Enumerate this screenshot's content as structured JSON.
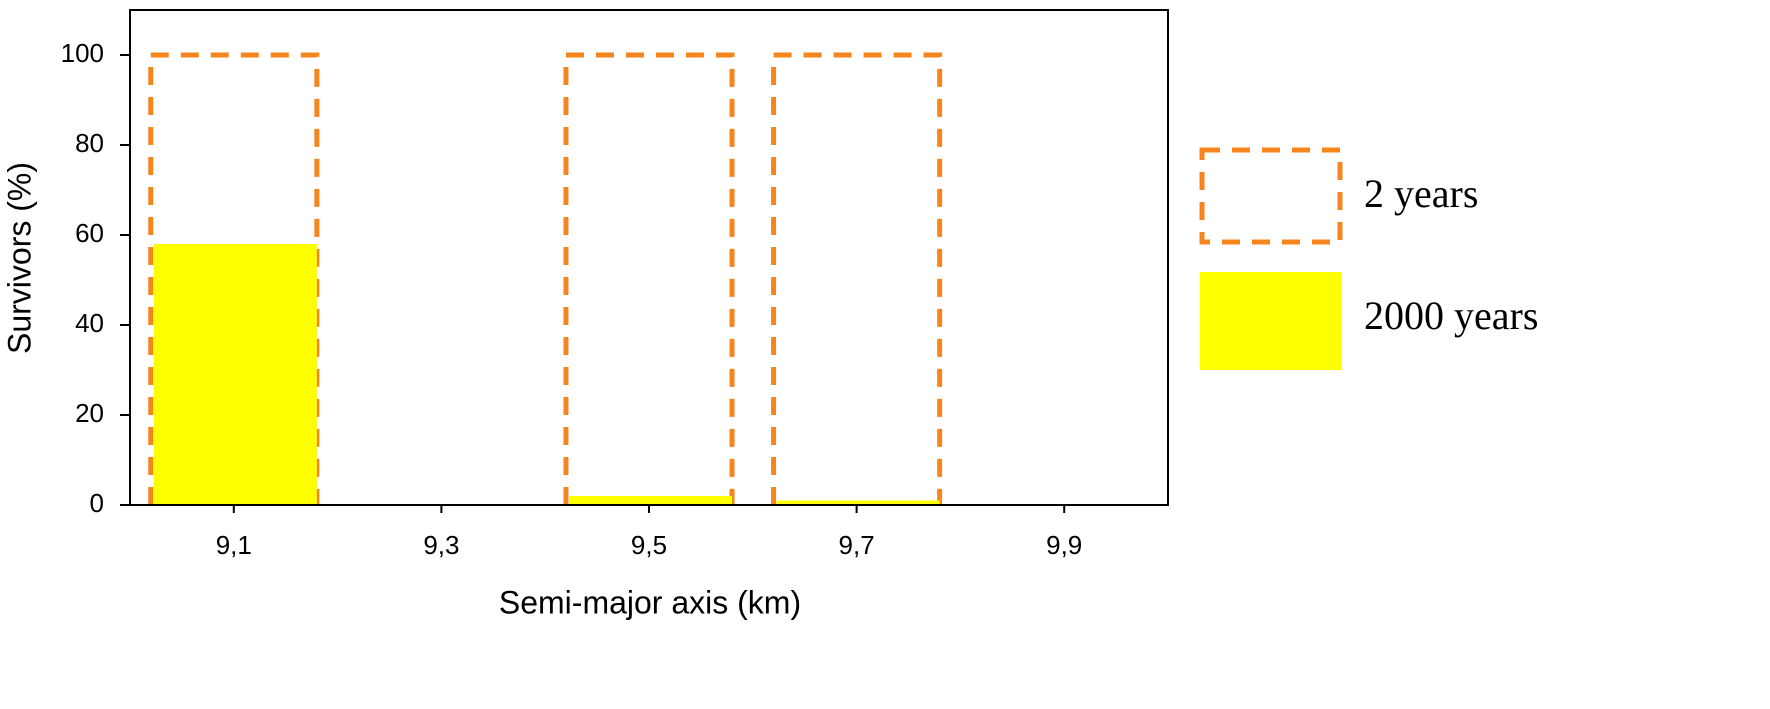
{
  "chart_data": {
    "type": "bar",
    "x_label": "Semi-major axis (km)",
    "y_label": "Survivors (%)",
    "x": [
      9.1,
      9.3,
      9.5,
      9.7,
      9.9
    ],
    "series": [
      {
        "name": "2 years",
        "color": "#f7851e",
        "style": "dashed-outline",
        "values": [
          100,
          0,
          100,
          100,
          0
        ]
      },
      {
        "name": "2000 years",
        "color": "#ffff00",
        "style": "filled",
        "values": [
          58,
          0,
          2,
          1,
          0
        ]
      }
    ],
    "xlim": [
      9.0,
      10.0
    ],
    "xticks": [
      {
        "value": 9.1,
        "label": "9,1"
      },
      {
        "value": 9.3,
        "label": "9,3"
      },
      {
        "value": 9.5,
        "label": "9,5"
      },
      {
        "value": 9.7,
        "label": "9,7"
      },
      {
        "value": 9.9,
        "label": "9,9"
      }
    ],
    "ylim": [
      0,
      110
    ],
    "yticks": [
      0,
      20,
      40,
      60,
      80,
      100
    ],
    "legend": "right"
  }
}
